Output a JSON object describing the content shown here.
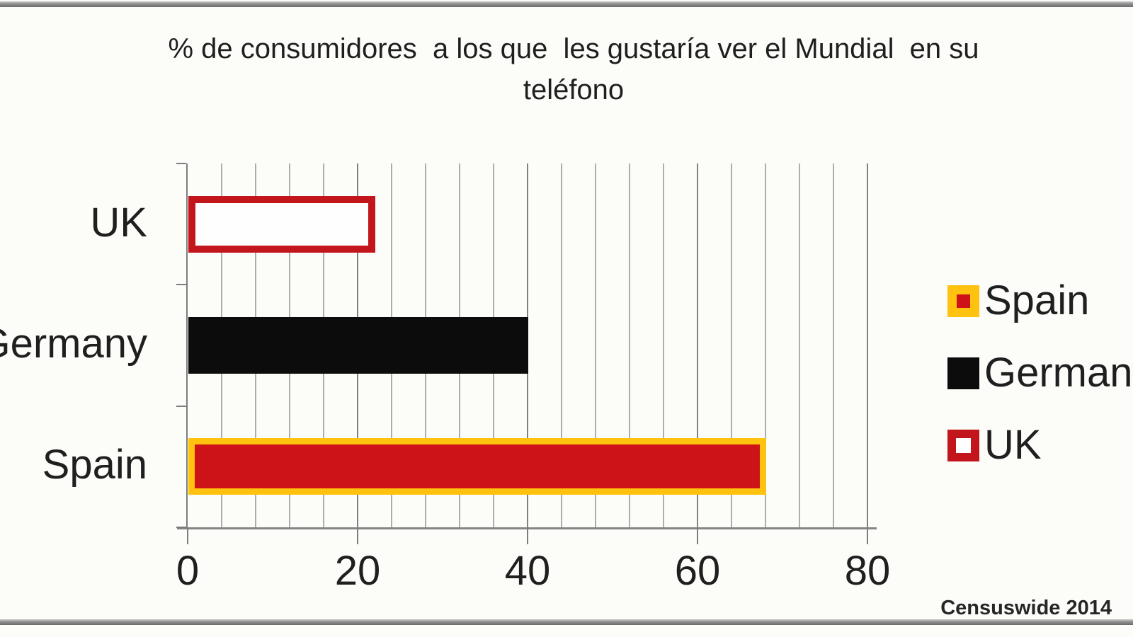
{
  "title": {
    "line1": "% de consumidores  a los que  les gustaría ver el Mundial  en su",
    "line2": "teléfono"
  },
  "source": "Censuswide 2014",
  "colors": {
    "background": "#fcfcf9",
    "text": "#1f1f1f",
    "axis": "#7d7d7d",
    "minor_gridline": "#adadad",
    "major_gridline": "#808080",
    "spain_red": "#ce1318",
    "spain_yellow_border": "#ffc20e",
    "germany_black": "#0c0c0c",
    "uk_red_border": "#c3161c",
    "uk_white_fill": "#fefefe"
  },
  "chart_data": {
    "type": "bar",
    "orientation": "horizontal",
    "title": "% de consumidores a los que les gustaría ver el Mundial en su teléfono",
    "categories": [
      "UK",
      "Germany",
      "Spain"
    ],
    "values": [
      22,
      40,
      68
    ],
    "xlabel": "",
    "ylabel": "",
    "xlim": [
      0,
      80
    ],
    "x_ticks": [
      0,
      20,
      40,
      60,
      80
    ],
    "minor_gridline_step": 4,
    "grid": true,
    "legend_position": "right",
    "legend": [
      {
        "label": "Spain",
        "fill": "#ce1318",
        "border": "#ffc20e",
        "swatch_border_width": 13
      },
      {
        "label": "Germany",
        "fill": "#0c0c0c",
        "border": "#0c0c0c",
        "swatch_border_width": 0
      },
      {
        "label": "UK",
        "fill": "#fefefe",
        "border": "#c3161c",
        "swatch_border_width": 12
      }
    ],
    "bar_styles": {
      "UK": {
        "fill": "#fefefe",
        "border": "#c3161c",
        "border_width": 10
      },
      "Germany": {
        "fill": "#0c0c0c",
        "border": "#0c0c0c",
        "border_width": 0
      },
      "Spain": {
        "fill": "#ce1318",
        "border": "#ffc20e",
        "border_width": 9
      }
    },
    "source": "Censuswide 2014"
  }
}
